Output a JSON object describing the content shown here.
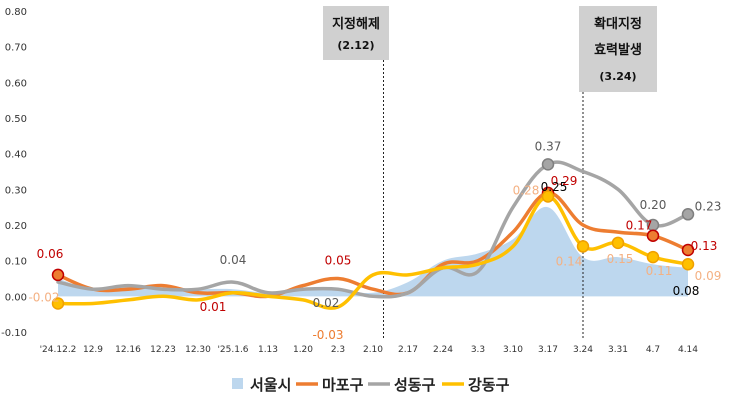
{
  "chart_data": {
    "type": "line",
    "categories": [
      "'24.12.2",
      "12.9",
      "12.16",
      "12.23",
      "12.30",
      "'25.1.6",
      "1.13",
      "1.20",
      "2.3",
      "2.10",
      "2.17",
      "2.24",
      "3.3",
      "3.10",
      "3.17",
      "3.24",
      "3.31",
      "4.7",
      "4.14"
    ],
    "ylim": [
      -0.1,
      0.8
    ],
    "yticks": [
      "0.80",
      "0.70",
      "0.60",
      "0.50",
      "0.40",
      "0.30",
      "0.20",
      "0.10",
      "0.00",
      "-0.10"
    ],
    "grid": false,
    "legend_position": "bottom",
    "series": [
      {
        "name": "서울시",
        "kind": "area",
        "color": "#bdd7ee",
        "values": [
          0.05,
          0.02,
          0.03,
          0.02,
          0.02,
          0.02,
          0.01,
          0.02,
          0.02,
          0.01,
          0.04,
          0.1,
          0.12,
          0.16,
          0.25,
          0.11,
          0.11,
          0.09,
          0.08
        ]
      },
      {
        "name": "마포구",
        "kind": "line",
        "color": "#ed7d31",
        "values": [
          0.06,
          0.02,
          0.02,
          0.03,
          0.01,
          0.01,
          0.0,
          0.03,
          0.05,
          0.02,
          0.01,
          0.09,
          0.1,
          0.18,
          0.29,
          0.2,
          0.18,
          0.17,
          0.13
        ]
      },
      {
        "name": "성동구",
        "kind": "line",
        "color": "#a5a5a5",
        "values": [
          0.04,
          0.02,
          0.03,
          0.02,
          0.02,
          0.04,
          0.01,
          0.02,
          0.02,
          0.0,
          0.01,
          0.08,
          0.07,
          0.25,
          0.37,
          0.35,
          0.3,
          0.2,
          0.23
        ]
      },
      {
        "name": "강동구",
        "kind": "line",
        "color": "#ffc000",
        "values": [
          -0.02,
          -0.02,
          -0.01,
          0.0,
          -0.01,
          0.01,
          0.0,
          -0.01,
          -0.03,
          0.06,
          0.06,
          0.08,
          0.09,
          0.14,
          0.28,
          0.14,
          0.15,
          0.11,
          0.09
        ]
      }
    ],
    "data_labels": [
      {
        "text": "0.06",
        "series": 1,
        "index": 0,
        "color": "#c00000"
      },
      {
        "text": "-0.02",
        "series": 3,
        "index": 0,
        "color": "#f4b183"
      },
      {
        "text": "0.04",
        "series": 2,
        "index": 5,
        "color": "#595959"
      },
      {
        "text": "0.01",
        "series": 1,
        "index": 5,
        "color": "#c00000"
      },
      {
        "text": "0.05",
        "series": 1,
        "index": 8,
        "color": "#c00000"
      },
      {
        "text": "0.02",
        "series": 2,
        "index": 8,
        "color": "#595959"
      },
      {
        "text": "-0.03",
        "series": 3,
        "index": 8,
        "color": "#ed7d31"
      },
      {
        "text": "0.37",
        "series": 2,
        "index": 14,
        "color": "#595959"
      },
      {
        "text": "0.29",
        "series": 1,
        "index": 14,
        "color": "#c00000"
      },
      {
        "text": "0.28",
        "series": 3,
        "index": 14,
        "color": "#f4b183"
      },
      {
        "text": "0.25",
        "series": 0,
        "index": 14,
        "color": "#000000"
      },
      {
        "text": "0.14",
        "series": 3,
        "index": 15,
        "color": "#f4b183"
      },
      {
        "text": "0.15",
        "series": 3,
        "index": 16,
        "color": "#f4b183"
      },
      {
        "text": "0.17",
        "series": 1,
        "index": 17,
        "color": "#c00000"
      },
      {
        "text": "0.20",
        "series": 2,
        "index": 17,
        "color": "#595959"
      },
      {
        "text": "0.11",
        "series": 3,
        "index": 17,
        "color": "#f4b183"
      },
      {
        "text": "0.23",
        "series": 2,
        "index": 18,
        "color": "#595959"
      },
      {
        "text": "0.13",
        "series": 1,
        "index": 18,
        "color": "#c00000"
      },
      {
        "text": "0.09",
        "series": 3,
        "index": 18,
        "color": "#f4b183"
      },
      {
        "text": "0.08",
        "series": 0,
        "index": 18,
        "color": "#000000"
      }
    ],
    "markers": [
      {
        "series": 1,
        "index": 0
      },
      {
        "series": 3,
        "index": 0
      },
      {
        "series": 2,
        "index": 14
      },
      {
        "series": 1,
        "index": 14
      },
      {
        "series": 3,
        "index": 14
      },
      {
        "series": 3,
        "index": 15
      },
      {
        "series": 3,
        "index": 16
      },
      {
        "series": 2,
        "index": 17
      },
      {
        "series": 1,
        "index": 17
      },
      {
        "series": 3,
        "index": 17
      },
      {
        "series": 2,
        "index": 18
      },
      {
        "series": 1,
        "index": 18
      },
      {
        "series": 3,
        "index": 18
      }
    ],
    "annotations": [
      {
        "title": "지정해제",
        "date": "(2.12)",
        "between": [
          9,
          10
        ]
      },
      {
        "title_lines": [
          "확대지정",
          "효력발생"
        ],
        "date": "(3.24)",
        "at": 15
      }
    ]
  }
}
